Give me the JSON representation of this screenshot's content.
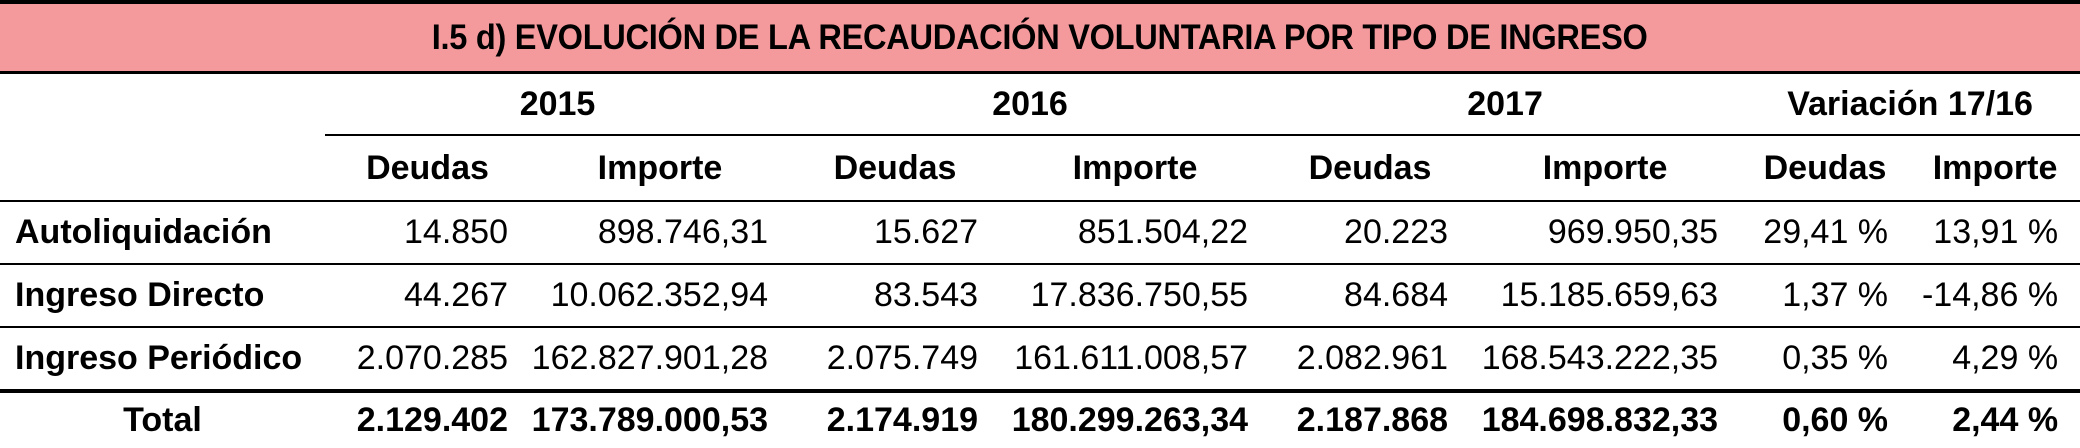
{
  "title": "I.5 d) EVOLUCIÓN DE LA RECAUDACIÓN VOLUNTARIA POR TIPO DE INGRESO",
  "colors": {
    "title_background": "#f4999c"
  },
  "years": [
    "2015",
    "2016",
    "2017",
    "Variación 17/16"
  ],
  "subheaders": [
    "Deudas",
    "Importe",
    "Deudas",
    "Importe",
    "Deudas",
    "Importe",
    "Deudas",
    "Importe"
  ],
  "rows": [
    {
      "label": "Autoliquidación",
      "values": [
        "14.850",
        "898.746,31",
        "15.627",
        "851.504,22",
        "20.223",
        "969.950,35",
        "29,41 %",
        "13,91 %"
      ]
    },
    {
      "label": "Ingreso Directo",
      "values": [
        "44.267",
        "10.062.352,94",
        "83.543",
        "17.836.750,55",
        "84.684",
        "15.185.659,63",
        "1,37 %",
        "-14,86 %"
      ]
    },
    {
      "label": "Ingreso Periódico",
      "values": [
        "2.070.285",
        "162.827.901,28",
        "2.075.749",
        "161.611.008,57",
        "2.082.961",
        "168.543.222,35",
        "0,35 %",
        "4,29 %"
      ]
    }
  ],
  "total": {
    "label": "Total",
    "values": [
      "2.129.402",
      "173.789.000,53",
      "2.174.919",
      "180.299.263,34",
      "2.187.868",
      "184.698.832,33",
      "0,60 %",
      "2,44 %"
    ]
  }
}
